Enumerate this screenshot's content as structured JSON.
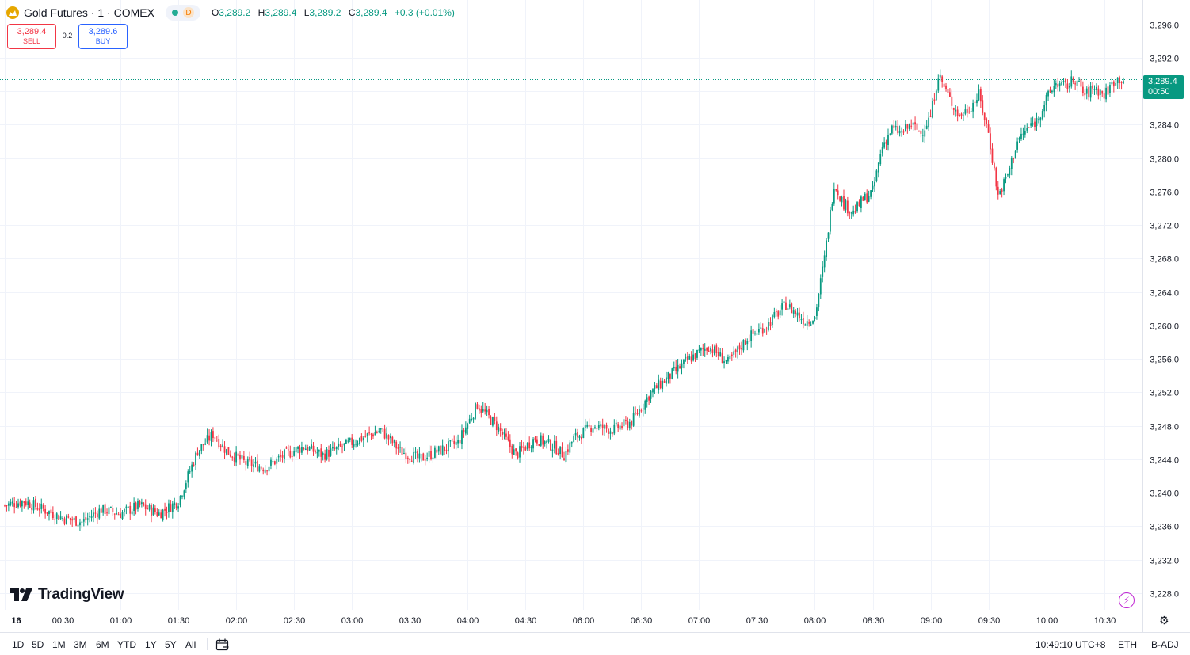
{
  "legend": {
    "symbol": "Gold Futures · 1 · COMEX",
    "status_letter": "D",
    "o_label": "O",
    "o_value": "3,289.2",
    "h_label": "H",
    "h_value": "3,289.4",
    "l_label": "L",
    "l_value": "3,289.2",
    "c_label": "C",
    "c_value": "3,289.4",
    "change": "+0.3 (+0.01%)"
  },
  "trade": {
    "sell_price": "3,289.4",
    "sell_label": "SELL",
    "spread": "0.2",
    "buy_price": "3,289.6",
    "buy_label": "BUY"
  },
  "last_price": {
    "price": "3,289.4",
    "countdown": "00:50"
  },
  "branding": {
    "logo_text": "TradingView"
  },
  "bottom_bar": {
    "ranges": [
      "1D",
      "5D",
      "1M",
      "3M",
      "6M",
      "YTD",
      "1Y",
      "5Y",
      "All"
    ],
    "clock": "10:49:10 UTC+8",
    "session": "ETH",
    "adjust": "B-ADJ"
  },
  "colors": {
    "up": "#089981",
    "down": "#f23645",
    "grid": "#f0f3fa",
    "last_line": "#089981"
  },
  "chart_data": {
    "type": "candlestick",
    "y_ticks": [
      "3,228.0",
      "3,232.0",
      "3,236.0",
      "3,240.0",
      "3,244.0",
      "3,248.0",
      "3,252.0",
      "3,256.0",
      "3,260.0",
      "3,264.0",
      "3,268.0",
      "3,272.0",
      "3,276.0",
      "3,280.0",
      "3,284.0",
      "3,288.0",
      "3,292.0",
      "3,296.0"
    ],
    "y_tick_values": [
      3228,
      3232,
      3236,
      3240,
      3244,
      3248,
      3252,
      3256,
      3260,
      3264,
      3268,
      3272,
      3276,
      3280,
      3284,
      3288,
      3292,
      3296
    ],
    "ylim": [
      3226.0,
      3298.9
    ],
    "x_ticks": [
      "16",
      "00:30",
      "01:00",
      "01:30",
      "02:00",
      "02:30",
      "03:00",
      "03:30",
      "04:00",
      "04:30",
      "06:00",
      "06:30",
      "07:00",
      "07:30",
      "08:00",
      "08:30",
      "09:00",
      "09:30",
      "10:00",
      "10:30"
    ],
    "x_tick_index": [
      0,
      30,
      60,
      90,
      120,
      150,
      180,
      210,
      240,
      270,
      300,
      330,
      360,
      390,
      420,
      450,
      480,
      510,
      540,
      570
    ],
    "last_price": 3289.4,
    "close_path": [
      [
        0,
        3238.5
      ],
      [
        10,
        3239.0
      ],
      [
        20,
        3238.0
      ],
      [
        30,
        3237.0
      ],
      [
        40,
        3236.5
      ],
      [
        50,
        3238.0
      ],
      [
        60,
        3237.5
      ],
      [
        70,
        3238.5
      ],
      [
        80,
        3237.5
      ],
      [
        90,
        3239.0
      ],
      [
        100,
        3245.0
      ],
      [
        108,
        3247.0
      ],
      [
        115,
        3245.0
      ],
      [
        125,
        3243.5
      ],
      [
        135,
        3243.0
      ],
      [
        145,
        3244.5
      ],
      [
        155,
        3245.5
      ],
      [
        165,
        3244.5
      ],
      [
        175,
        3245.5
      ],
      [
        185,
        3246.5
      ],
      [
        195,
        3247.5
      ],
      [
        205,
        3245.0
      ],
      [
        215,
        3244.0
      ],
      [
        225,
        3245.0
      ],
      [
        235,
        3246.0
      ],
      [
        245,
        3250.5
      ],
      [
        255,
        3248.0
      ],
      [
        265,
        3244.5
      ],
      [
        275,
        3246.5
      ],
      [
        285,
        3245.5
      ],
      [
        290,
        3244.5
      ],
      [
        295,
        3246.5
      ],
      [
        305,
        3248.0
      ],
      [
        315,
        3247.5
      ],
      [
        325,
        3248.5
      ],
      [
        335,
        3252.0
      ],
      [
        345,
        3254.0
      ],
      [
        355,
        3256.0
      ],
      [
        365,
        3257.5
      ],
      [
        375,
        3255.5
      ],
      [
        385,
        3258.5
      ],
      [
        395,
        3260.0
      ],
      [
        405,
        3262.5
      ],
      [
        415,
        3260.5
      ],
      [
        420,
        3261.0
      ],
      [
        425,
        3268.0
      ],
      [
        430,
        3277.0
      ],
      [
        435,
        3274.5
      ],
      [
        440,
        3273.5
      ],
      [
        445,
        3275.0
      ],
      [
        450,
        3276.0
      ],
      [
        455,
        3281.5
      ],
      [
        460,
        3283.5
      ],
      [
        465,
        3283.0
      ],
      [
        470,
        3284.0
      ],
      [
        475,
        3283.0
      ],
      [
        480,
        3285.0
      ],
      [
        484,
        3290.0
      ],
      [
        490,
        3287.0
      ],
      [
        495,
        3285.0
      ],
      [
        500,
        3286.0
      ],
      [
        505,
        3287.5
      ],
      [
        510,
        3283.0
      ],
      [
        515,
        3275.5
      ],
      [
        520,
        3278.0
      ],
      [
        525,
        3282.0
      ],
      [
        530,
        3283.5
      ],
      [
        535,
        3284.5
      ],
      [
        540,
        3287.0
      ],
      [
        545,
        3289.0
      ],
      [
        550,
        3288.5
      ],
      [
        555,
        3289.5
      ],
      [
        560,
        3287.5
      ],
      [
        565,
        3288.5
      ],
      [
        570,
        3287.5
      ],
      [
        576,
        3289.5
      ],
      [
        580,
        3289.4
      ]
    ],
    "notable_levels": {
      "high": 3290.5,
      "low": 3236.0,
      "last": 3289.4
    }
  }
}
